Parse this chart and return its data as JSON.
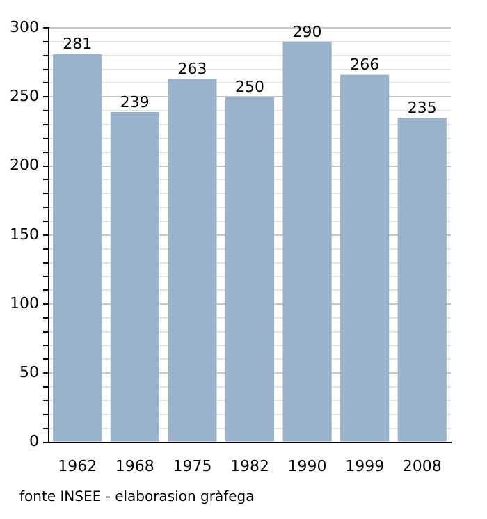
{
  "chart_data": {
    "type": "bar",
    "categories": [
      "1962",
      "1968",
      "1975",
      "1982",
      "1990",
      "1999",
      "2008"
    ],
    "values": [
      281,
      239,
      263,
      250,
      290,
      266,
      235
    ],
    "color": "#99b3cc",
    "data_labels": true,
    "grid": "y",
    "legend": false,
    "ylim": [
      0,
      300
    ],
    "yticks": [
      0,
      {
        "value": 10,
        "label": null
      },
      {
        "value": 20,
        "label": null
      },
      {
        "value": 30,
        "label": null
      },
      {
        "value": 40,
        "label": null
      },
      50,
      {
        "value": 60,
        "label": null
      },
      {
        "value": 70,
        "label": null
      },
      {
        "value": 80,
        "label": null
      },
      {
        "value": 90,
        "label": null
      },
      100,
      {
        "value": 110,
        "label": null
      },
      {
        "value": 120,
        "label": null
      },
      {
        "value": 130,
        "label": null
      },
      {
        "value": 140,
        "label": null
      },
      150,
      {
        "value": 160,
        "label": null
      },
      {
        "value": 170,
        "label": null
      },
      {
        "value": 180,
        "label": null
      },
      {
        "value": 190,
        "label": null
      },
      200,
      {
        "value": 210,
        "label": null
      },
      {
        "value": 220,
        "label": null
      },
      {
        "value": 230,
        "label": null
      },
      {
        "value": 240,
        "label": null
      },
      250,
      {
        "value": 260,
        "label": null
      },
      {
        "value": 270,
        "label": null
      },
      {
        "value": 280,
        "label": null
      },
      {
        "value": 290,
        "label": null
      },
      300
    ],
    "annotations": [
      "fonte INSEE - elaborasion gràfega"
    ]
  }
}
